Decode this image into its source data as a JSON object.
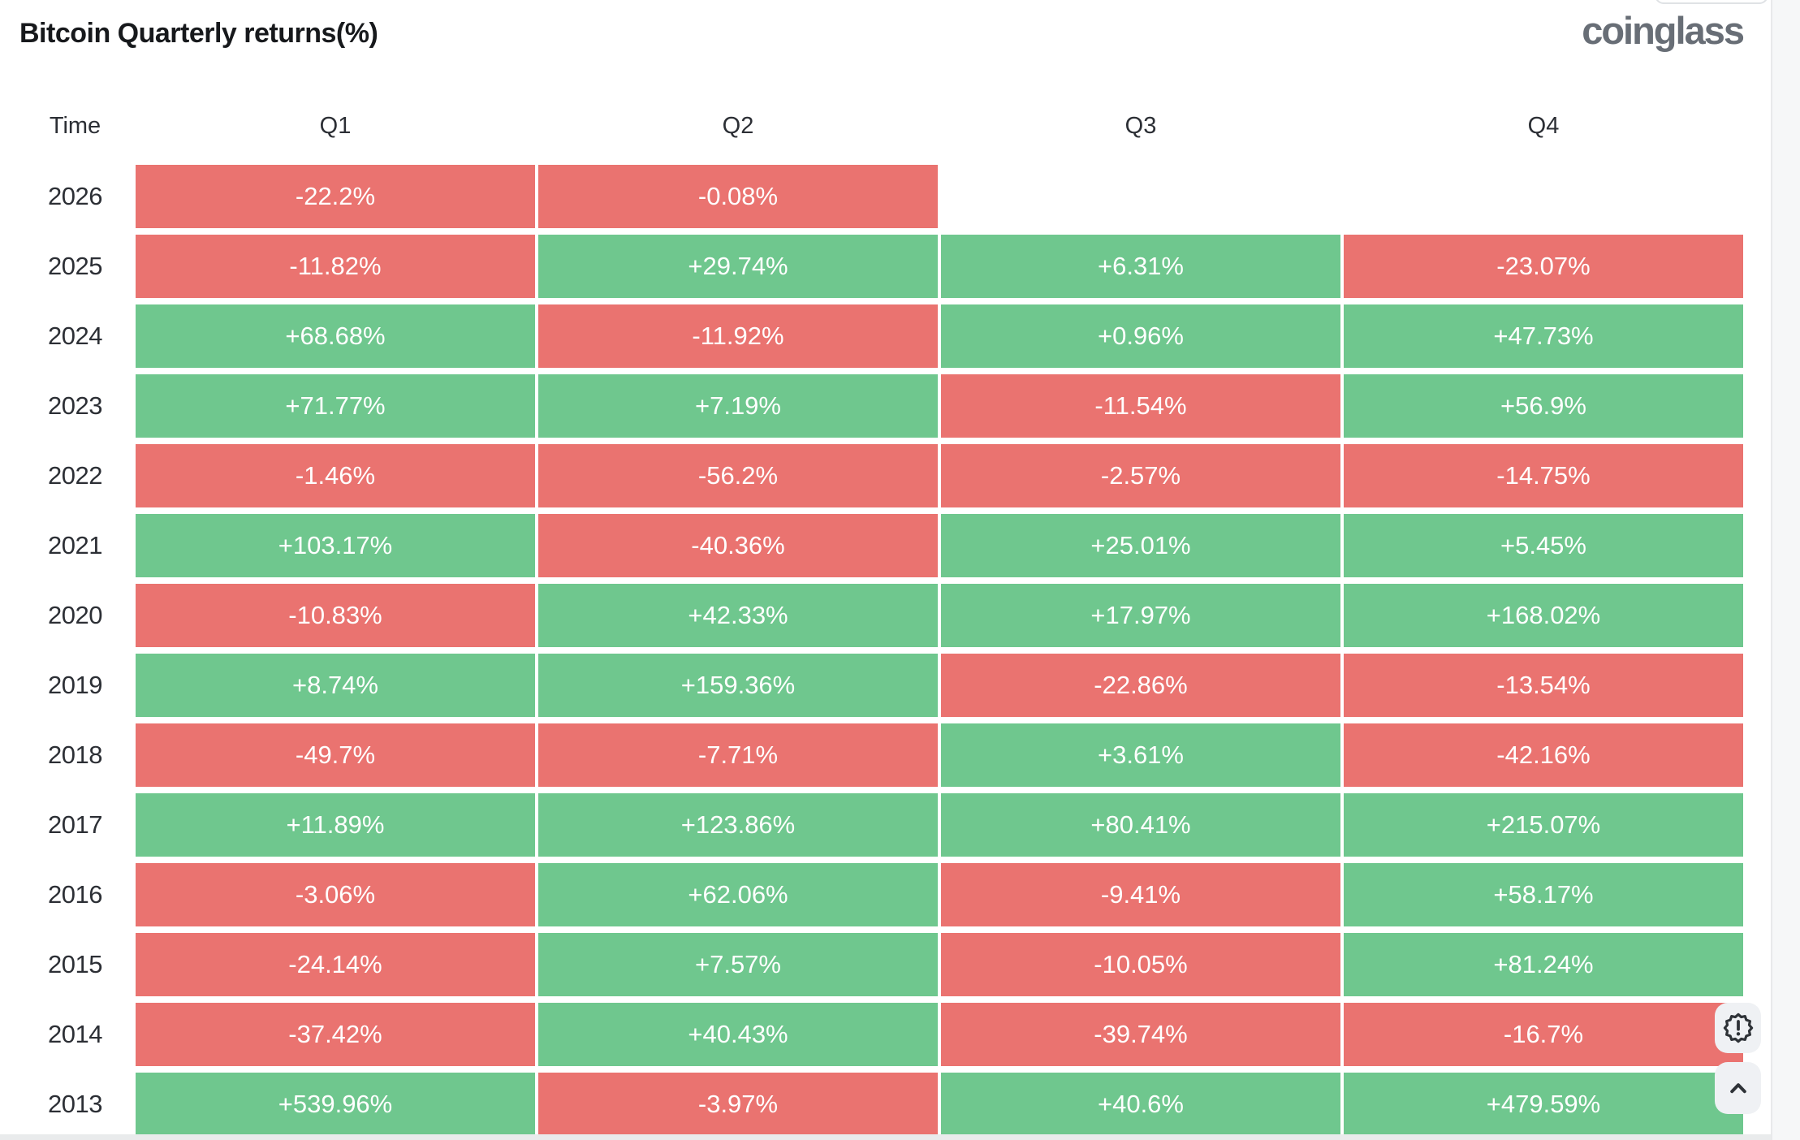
{
  "page": {
    "title": "Bitcoin Quarterly returns(%)",
    "brand": "coinglass"
  },
  "colors": {
    "positive": "#6FC78E",
    "negative": "#EA7370",
    "cell_text": "#FFFFFF",
    "page_bg": "#FFFFFF",
    "title_color": "#17191C",
    "brand_color": "#686E76",
    "label_color": "#2C2F35",
    "gutter_bg": "#F6F7F8",
    "strip_bg": "#E9EBEC",
    "button_bg": "#EFF1F4",
    "icon_color": "#2E3237"
  },
  "table": {
    "columns": [
      "Time",
      "Q1",
      "Q2",
      "Q3",
      "Q4"
    ],
    "rows": [
      {
        "year": "2026",
        "cells": [
          "-22.2%",
          "-0.08%",
          null,
          null
        ]
      },
      {
        "year": "2025",
        "cells": [
          "-11.82%",
          "+29.74%",
          "+6.31%",
          "-23.07%"
        ]
      },
      {
        "year": "2024",
        "cells": [
          "+68.68%",
          "-11.92%",
          "+0.96%",
          "+47.73%"
        ]
      },
      {
        "year": "2023",
        "cells": [
          "+71.77%",
          "+7.19%",
          "-11.54%",
          "+56.9%"
        ]
      },
      {
        "year": "2022",
        "cells": [
          "-1.46%",
          "-56.2%",
          "-2.57%",
          "-14.75%"
        ]
      },
      {
        "year": "2021",
        "cells": [
          "+103.17%",
          "-40.36%",
          "+25.01%",
          "+5.45%"
        ]
      },
      {
        "year": "2020",
        "cells": [
          "-10.83%",
          "+42.33%",
          "+17.97%",
          "+168.02%"
        ]
      },
      {
        "year": "2019",
        "cells": [
          "+8.74%",
          "+159.36%",
          "-22.86%",
          "-13.54%"
        ]
      },
      {
        "year": "2018",
        "cells": [
          "-49.7%",
          "-7.71%",
          "+3.61%",
          "-42.16%"
        ]
      },
      {
        "year": "2017",
        "cells": [
          "+11.89%",
          "+123.86%",
          "+80.41%",
          "+215.07%"
        ]
      },
      {
        "year": "2016",
        "cells": [
          "-3.06%",
          "+62.06%",
          "-9.41%",
          "+58.17%"
        ]
      },
      {
        "year": "2015",
        "cells": [
          "-24.14%",
          "+7.57%",
          "-10.05%",
          "+81.24%"
        ]
      },
      {
        "year": "2014",
        "cells": [
          "-37.42%",
          "+40.43%",
          "-39.74%",
          "-16.7%"
        ]
      },
      {
        "year": "2013",
        "cells": [
          "+539.96%",
          "-3.97%",
          "+40.6%",
          "+479.59%"
        ]
      }
    ]
  },
  "floating_buttons": [
    {
      "icon": "alert-badge-icon"
    },
    {
      "icon": "chevron-up-icon"
    }
  ],
  "chart_data": {
    "type": "heatmap",
    "title": "Bitcoin Quarterly returns(%)",
    "row_header_label": "Time",
    "columns": [
      "Q1",
      "Q2",
      "Q3",
      "Q4"
    ],
    "rows": [
      "2026",
      "2025",
      "2024",
      "2023",
      "2022",
      "2021",
      "2020",
      "2019",
      "2018",
      "2017",
      "2016",
      "2015",
      "2014",
      "2013"
    ],
    "values_pct": [
      [
        -22.2,
        -0.08,
        null,
        null
      ],
      [
        -11.82,
        29.74,
        6.31,
        -23.07
      ],
      [
        68.68,
        -11.92,
        0.96,
        47.73
      ],
      [
        71.77,
        7.19,
        -11.54,
        56.9
      ],
      [
        -1.46,
        -56.2,
        -2.57,
        -14.75
      ],
      [
        103.17,
        -40.36,
        25.01,
        5.45
      ],
      [
        -10.83,
        42.33,
        17.97,
        168.02
      ],
      [
        8.74,
        159.36,
        -22.86,
        -13.54
      ],
      [
        -49.7,
        -7.71,
        3.61,
        -42.16
      ],
      [
        11.89,
        123.86,
        80.41,
        215.07
      ],
      [
        -3.06,
        62.06,
        -9.41,
        58.17
      ],
      [
        -24.14,
        7.57,
        -10.05,
        81.24
      ],
      [
        -37.42,
        40.43,
        -39.74,
        -16.7
      ],
      [
        539.96,
        -3.97,
        40.6,
        479.59
      ]
    ],
    "color_rule": "positive values green, negative values red",
    "colors": {
      "positive": "#6FC78E",
      "negative": "#EA7370"
    },
    "legend_position": "none",
    "grid": false
  }
}
